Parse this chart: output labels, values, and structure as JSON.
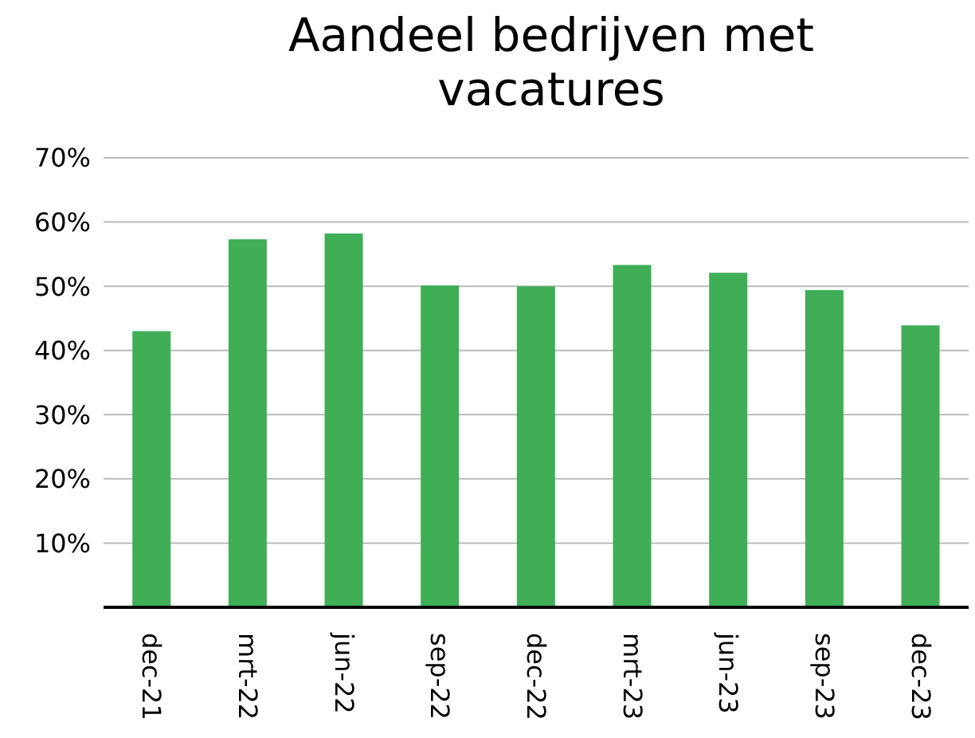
{
  "chart_data": {
    "type": "bar",
    "title": "Aandeel bedrijven met vacatures",
    "categories": [
      "dec-21",
      "mrt-22",
      "jun-22",
      "sep-22",
      "dec-22",
      "mrt-23",
      "jun-23",
      "sep-23",
      "dec-23"
    ],
    "values": [
      43,
      57.3,
      58.2,
      50.1,
      50,
      53.3,
      52.1,
      49.4,
      43.9
    ],
    "color": "#3fae57",
    "ylim": [
      0,
      70
    ],
    "yticks": [
      {
        "value": 0,
        "label": null
      },
      {
        "value": 10,
        "label": "10%"
      },
      {
        "value": 20,
        "label": "20%"
      },
      {
        "value": 30,
        "label": "30%"
      },
      {
        "value": 40,
        "label": "40%"
      },
      {
        "value": 50,
        "label": "50%"
      },
      {
        "value": 60,
        "label": "60%"
      },
      {
        "value": 70,
        "label": "70%"
      }
    ],
    "grid": "y",
    "legend": false
  }
}
